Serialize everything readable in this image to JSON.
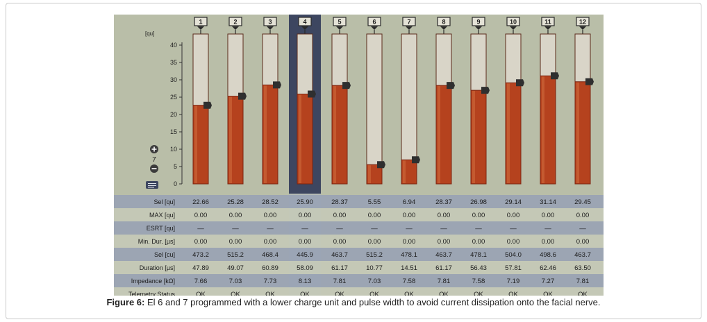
{
  "figure": {
    "caption_label": "Figure 6:",
    "caption_text": " El 6 and 7 programmed with a lower charge unit and pulse width to avoid current dissipation onto the facial nerve."
  },
  "chart_data": {
    "type": "bar",
    "ylabel": "[qu]",
    "ylim": [
      0,
      40
    ],
    "yticks": [
      0,
      5,
      10,
      15,
      20,
      25,
      30,
      35,
      40
    ],
    "step_value": "7",
    "categories": [
      "1",
      "2",
      "3",
      "4",
      "5",
      "6",
      "7",
      "8",
      "9",
      "10",
      "11",
      "12"
    ],
    "selected_category": "4",
    "values": [
      22.66,
      25.28,
      28.52,
      25.9,
      28.37,
      5.55,
      6.94,
      28.37,
      26.98,
      29.14,
      31.14,
      29.45
    ],
    "colors": {
      "bar": "#b5421e",
      "bar_dark": "#7a2410",
      "background": "#b9bea8",
      "selected_column": "#3d4660",
      "row_shaded": "#97a1b5",
      "row_plain": "#c6cab8"
    },
    "table": {
      "rows": [
        {
          "label": "Sel [qu]",
          "values": [
            "22.66",
            "25.28",
            "28.52",
            "25.90",
            "28.37",
            "5.55",
            "6.94",
            "28.37",
            "26.98",
            "29.14",
            "31.14",
            "29.45"
          ]
        },
        {
          "label": "MAX [qu]",
          "values": [
            "0.00",
            "0.00",
            "0.00",
            "0.00",
            "0.00",
            "0.00",
            "0.00",
            "0.00",
            "0.00",
            "0.00",
            "0.00",
            "0.00"
          ]
        },
        {
          "label": "ESRT [qu]",
          "values": [
            "—",
            "—",
            "—",
            "—",
            "—",
            "—",
            "—",
            "—",
            "—",
            "—",
            "—",
            "—"
          ]
        },
        {
          "label": "Min. Dur. [µs]",
          "values": [
            "0.00",
            "0.00",
            "0.00",
            "0.00",
            "0.00",
            "0.00",
            "0.00",
            "0.00",
            "0.00",
            "0.00",
            "0.00",
            "0.00"
          ]
        },
        {
          "label": "Sel [cu]",
          "values": [
            "473.2",
            "515.2",
            "468.4",
            "445.9",
            "463.7",
            "515.2",
            "478.1",
            "463.7",
            "478.1",
            "504.0",
            "498.6",
            "463.7"
          ]
        },
        {
          "label": "Duration [µs]",
          "values": [
            "47.89",
            "49.07",
            "60.89",
            "58.09",
            "61.17",
            "10.77",
            "14.51",
            "61.17",
            "56.43",
            "57.81",
            "62.46",
            "63.50"
          ]
        },
        {
          "label": "Impedance [kΩ]",
          "values": [
            "7.66",
            "7.03",
            "7.73",
            "8.13",
            "7.81",
            "7.03",
            "7.58",
            "7.81",
            "7.58",
            "7.19",
            "7.27",
            "7.81"
          ]
        },
        {
          "label": "Telemetry Status",
          "values": [
            "OK",
            "OK",
            "OK",
            "OK",
            "OK",
            "OK",
            "OK",
            "OK",
            "OK",
            "OK",
            "OK",
            "OK"
          ]
        }
      ]
    }
  }
}
